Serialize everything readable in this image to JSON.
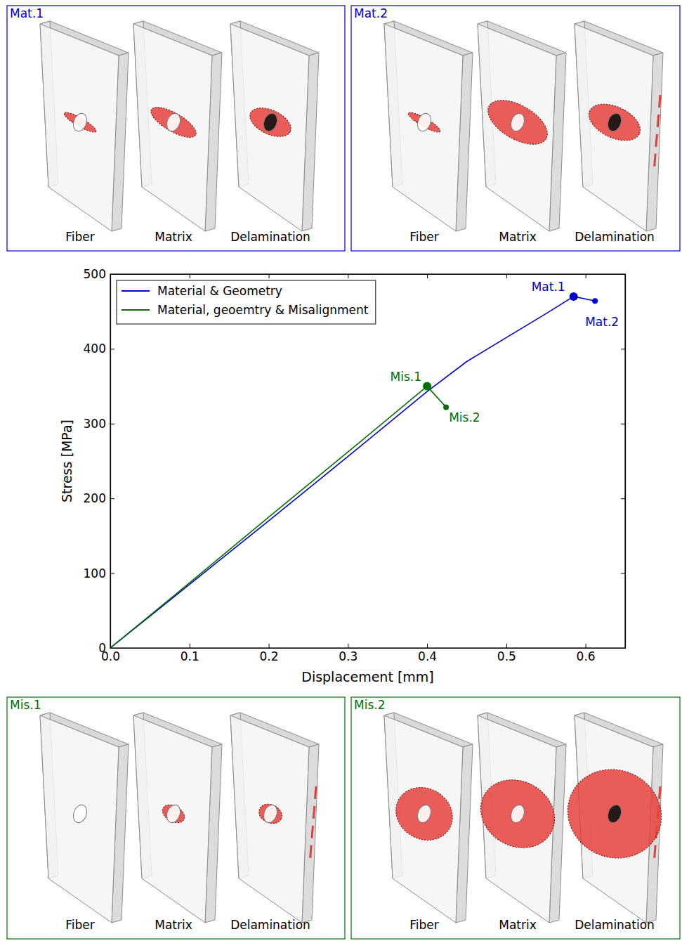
{
  "chart_data": {
    "type": "line",
    "xlabel": "Displacement [mm]",
    "ylabel": "Stress [MPa]",
    "xlim": [
      0,
      0.65
    ],
    "ylim": [
      0,
      500
    ],
    "xticks": [
      {
        "value": 0,
        "label": "0.0"
      },
      0.1,
      0.2,
      0.3,
      0.4,
      0.5,
      0.6
    ],
    "yticks": [
      0,
      100,
      200,
      300,
      400,
      500
    ],
    "legend": "upper left",
    "grid": false,
    "series": [
      {
        "name": "Material & Geometry",
        "color": "#0000cc",
        "x": [
          0,
          0.1,
          0.2,
          0.3,
          0.4,
          0.45,
          0.5,
          0.55,
          0.585,
          0.612
        ],
        "values": [
          0,
          85,
          170,
          256,
          343,
          383,
          415,
          447,
          470,
          464
        ]
      },
      {
        "name": "Material, geoemtry & Misalignment",
        "color": "#007000",
        "x": [
          0,
          0.1,
          0.2,
          0.3,
          0.4,
          0.424
        ],
        "values": [
          0,
          87,
          175,
          262,
          350,
          322
        ]
      }
    ],
    "annotations": [
      {
        "text": "Mat.1",
        "x": 0.585,
        "y": 470,
        "color": "#0000cc",
        "marker": "large"
      },
      {
        "text": "Mat.2",
        "x": 0.612,
        "y": 464,
        "color": "#0000cc",
        "marker": "small"
      },
      {
        "text": "Mis.1",
        "x": 0.4,
        "y": 350,
        "color": "#007000",
        "marker": "large"
      },
      {
        "text": "Mis.2",
        "x": 0.424,
        "y": 322,
        "color": "#007000",
        "marker": "small"
      }
    ]
  },
  "panels": [
    {
      "title": "Mat.1",
      "color": "#0000cc",
      "labels": [
        "Fiber",
        "Matrix",
        "Delamination"
      ]
    },
    {
      "title": "Mat.2",
      "color": "#0000cc",
      "labels": [
        "Fiber",
        "Matrix",
        "Delamination"
      ]
    },
    {
      "title": "Mis.1",
      "color": "#007000",
      "labels": [
        "Fiber",
        "Matrix",
        "Delamination"
      ]
    },
    {
      "title": "Mis.2",
      "color": "#007000",
      "labels": [
        "Fiber",
        "Matrix",
        "Delamination"
      ]
    }
  ]
}
